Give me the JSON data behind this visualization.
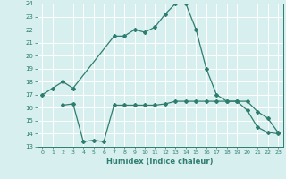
{
  "xlabel": "Humidex (Indice chaleur)",
  "ylabel": "",
  "xlim": [
    -0.5,
    23.5
  ],
  "ylim": [
    13,
    24
  ],
  "yticks": [
    13,
    14,
    15,
    16,
    17,
    18,
    19,
    20,
    21,
    22,
    23,
    24
  ],
  "xticks": [
    0,
    1,
    2,
    3,
    4,
    5,
    6,
    7,
    8,
    9,
    10,
    11,
    12,
    13,
    14,
    15,
    16,
    17,
    18,
    19,
    20,
    21,
    22,
    23
  ],
  "background_color": "#d8eff0",
  "line_color": "#2e7d6e",
  "grid_color": "#ffffff",
  "line1_x": [
    0,
    1,
    2,
    3,
    7,
    8,
    9,
    10,
    11,
    12,
    13,
    14,
    15,
    16,
    17,
    18,
    19,
    20,
    21,
    22,
    23
  ],
  "line1_y": [
    17,
    17.5,
    18,
    17.5,
    21.5,
    21.5,
    22,
    21.8,
    22.2,
    23.2,
    24,
    24,
    22,
    19,
    17,
    16.5,
    16.5,
    15.8,
    14.5,
    14.1,
    14
  ],
  "line2_x": [
    2,
    3,
    4,
    5,
    6,
    7,
    8,
    9,
    10,
    11,
    12,
    13,
    14,
    15,
    16,
    17,
    18,
    19,
    20,
    21,
    22,
    23
  ],
  "line2_y": [
    16.2,
    16.3,
    13.4,
    13.5,
    13.4,
    16.2,
    16.2,
    16.2,
    16.2,
    16.2,
    16.3,
    16.5,
    16.5,
    16.5,
    16.5,
    16.5,
    16.5,
    16.5,
    16.5,
    15.7,
    15.2,
    14.1
  ]
}
